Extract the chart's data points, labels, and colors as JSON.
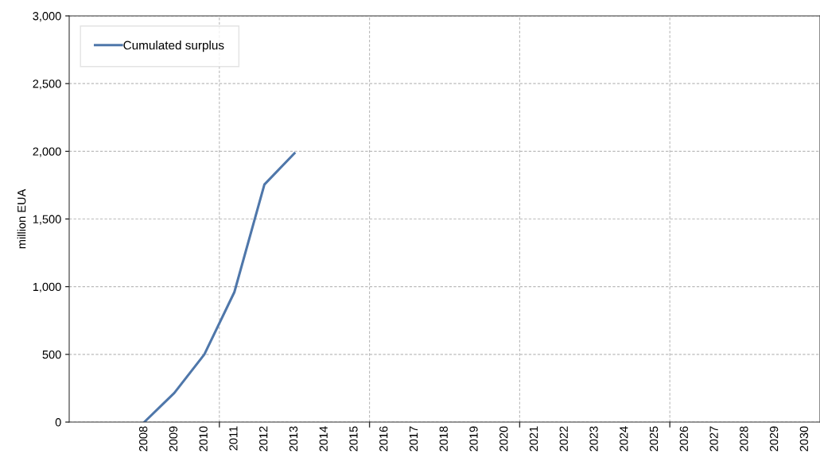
{
  "chart_data": {
    "type": "line",
    "ylabel": "million EUA",
    "categories": [
      null,
      null,
      "2008",
      "2009",
      "2010",
      "2011",
      "2012",
      "2013",
      "2014",
      "2015",
      "2016",
      "2017",
      "2018",
      "2019",
      "2020",
      "2021",
      "2022",
      "2023",
      "2024",
      "2025",
      "2026",
      "2027",
      "2028",
      "2029",
      "2030"
    ],
    "series": [
      {
        "name": "Cumulated surplus",
        "color": "#4f77aa",
        "values": [
          null,
          null,
          0,
          215,
          500,
          960,
          1755,
          1985,
          null,
          null,
          null,
          null,
          null,
          null,
          null,
          null,
          null,
          null,
          null,
          null,
          null,
          null,
          null,
          null,
          null
        ]
      }
    ],
    "ylim": [
      0,
      3000
    ],
    "yticks": [
      {
        "value": 0,
        "label": "0"
      },
      {
        "value": 500,
        "label": "500"
      },
      {
        "value": 1000,
        "label": "1,000"
      },
      {
        "value": 1500,
        "label": "1,500"
      },
      {
        "value": 2000,
        "label": "2,000"
      },
      {
        "value": 2500,
        "label": "2,500"
      },
      {
        "value": 3000,
        "label": "3,000"
      }
    ],
    "grid": true,
    "legend": "top left",
    "marker": "none",
    "line_style": "solid"
  }
}
